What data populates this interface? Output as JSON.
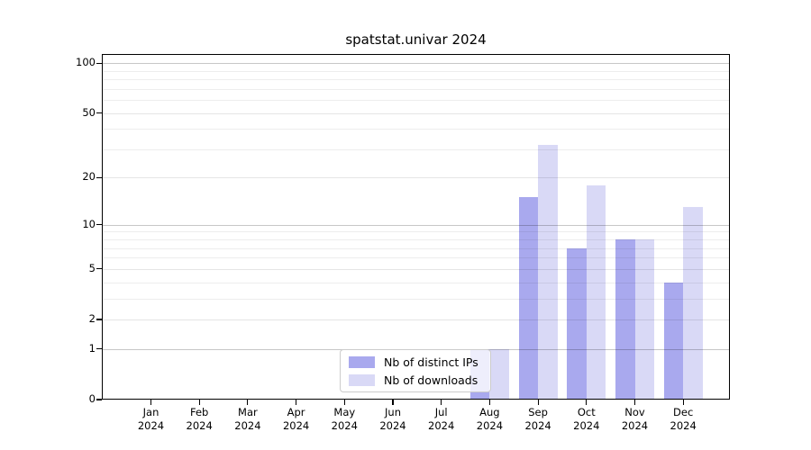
{
  "title": "spatstat.univar 2024",
  "legend": {
    "items": [
      {
        "label": "Nb of distinct IPs",
        "color": "#a9a9ee"
      },
      {
        "label": "Nb of downloads",
        "color": "#d9d9f6"
      }
    ]
  },
  "chart_data": {
    "type": "bar",
    "title": "spatstat.univar 2024",
    "categories": [
      "Jan 2024",
      "Feb 2024",
      "Mar 2024",
      "Apr 2024",
      "May 2024",
      "Jun 2024",
      "Jul 2024",
      "Aug 2024",
      "Sep 2024",
      "Oct 2024",
      "Nov 2024",
      "Dec 2024"
    ],
    "x_tick_line1": [
      "Jan",
      "Feb",
      "Mar",
      "Apr",
      "May",
      "Jun",
      "Jul",
      "Aug",
      "Sep",
      "Oct",
      "Nov",
      "Dec"
    ],
    "x_tick_line2": [
      "2024",
      "2024",
      "2024",
      "2024",
      "2024",
      "2024",
      "2024",
      "2024",
      "2024",
      "2024",
      "2024",
      "2024"
    ],
    "series": [
      {
        "name": "Nb of distinct IPs",
        "color": "#a9a9ee",
        "values": [
          0,
          0,
          0,
          0,
          0,
          0,
          0,
          1,
          15,
          7,
          8,
          4
        ]
      },
      {
        "name": "Nb of downloads",
        "color": "#d9d9f6",
        "values": [
          0,
          0,
          0,
          0,
          0,
          0,
          0,
          1,
          32,
          18,
          8,
          13
        ]
      }
    ],
    "y_axis": {
      "scale": "log1p",
      "tick_values": [
        0,
        1,
        2,
        5,
        10,
        20,
        50,
        100
      ],
      "tick_labels": [
        "0",
        "1",
        "2",
        "5",
        "10",
        "20",
        "50",
        "100"
      ],
      "minor_tick_values": [
        3,
        4,
        6,
        7,
        8,
        9,
        30,
        40,
        60,
        70,
        80,
        90
      ],
      "ylim": [
        0,
        113
      ]
    },
    "grid": true,
    "legend_position": "inside-bottom-center"
  }
}
